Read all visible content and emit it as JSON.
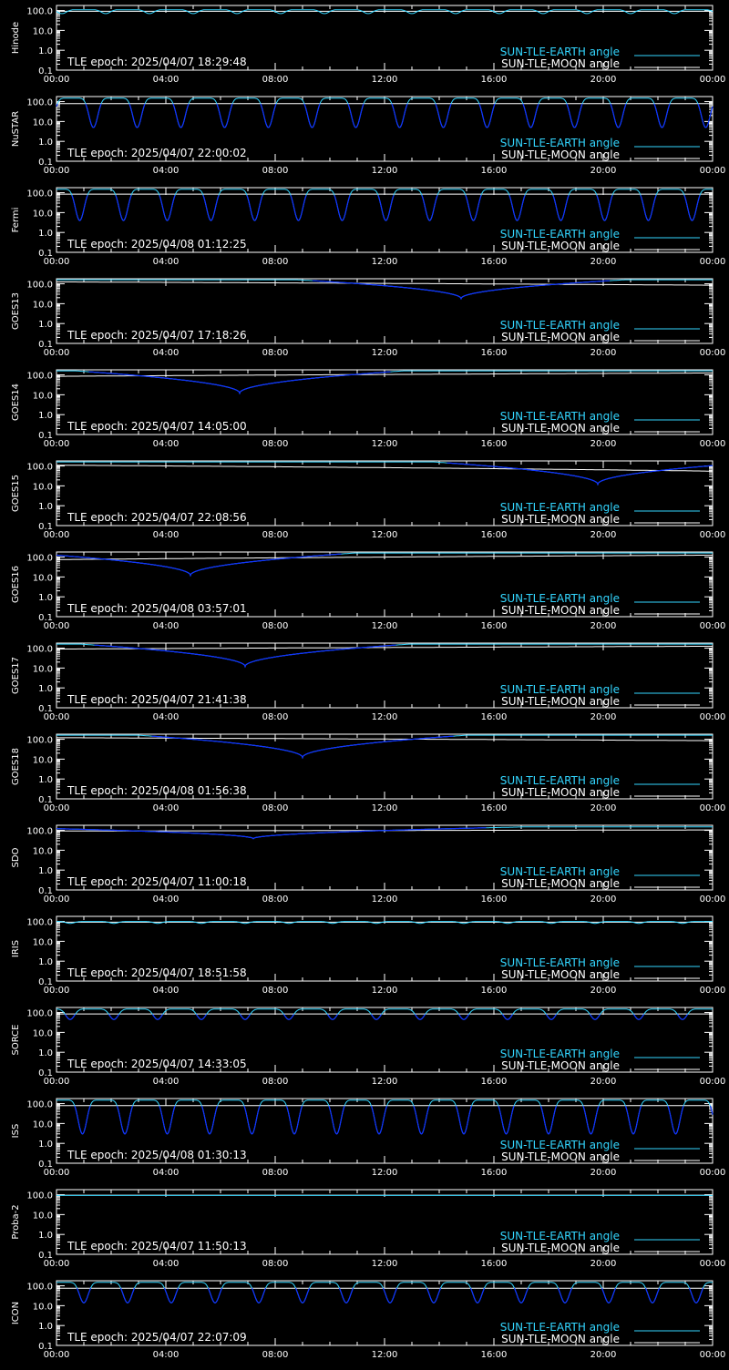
{
  "colors": {
    "background": "#000000",
    "axes": "#ffffff",
    "earth_angle": "#33d6ff",
    "earth_angle_shadow": "#1030ff",
    "moon_angle": "#ffffff"
  },
  "legend": {
    "earth_label": "SUN-TLE-EARTH angle",
    "moon_label": "SUN-TLE-MOON angle"
  },
  "x_ticks": [
    "00:00",
    "04:00",
    "08:00",
    "12:00",
    "16:00",
    "20:00",
    "00:00"
  ],
  "y_ticks": [
    "100.0",
    "10.0",
    "1.0",
    "0.1"
  ],
  "chart_data": [
    {
      "type": "line",
      "satellite": "Hinode",
      "epoch": "TLE epoch: 2025/04/07 18:29:48",
      "scale": "log",
      "ylim": [
        0.1,
        180
      ],
      "xlim": [
        0,
        24
      ],
      "earth": {
        "kind": "periodic",
        "period_h": 1.6,
        "phase_h": 0.2,
        "min": 70,
        "max": 110,
        "shadow": false
      },
      "moon": {
        "kind": "flat",
        "value": 92
      }
    },
    {
      "type": "line",
      "satellite": "NuSTAR",
      "epoch": "TLE epoch: 2025/04/07 22:00:02",
      "scale": "log",
      "ylim": [
        0.1,
        180
      ],
      "xlim": [
        0,
        24
      ],
      "earth": {
        "kind": "periodic",
        "period_h": 1.6,
        "phase_h": 1.35,
        "min": 5,
        "max": 150,
        "shadow": true
      },
      "moon": {
        "kind": "flat",
        "value": 80
      }
    },
    {
      "type": "line",
      "satellite": "Fermi",
      "epoch": "TLE epoch: 2025/04/08 01:12:25",
      "scale": "log",
      "ylim": [
        0.1,
        180
      ],
      "xlim": [
        0,
        24
      ],
      "earth": {
        "kind": "periodic",
        "period_h": 1.6,
        "phase_h": 0.85,
        "min": 4,
        "max": 150,
        "shadow": true
      },
      "moon": {
        "kind": "flat",
        "value": 85
      }
    },
    {
      "type": "line",
      "satellite": "GOES13",
      "epoch": "TLE epoch: 2025/04/07 17:18:26",
      "scale": "log",
      "ylim": [
        0.1,
        180
      ],
      "xlim": [
        0,
        24
      ],
      "earth": {
        "kind": "dip",
        "center_h": 14.8,
        "min": 18,
        "max": 160,
        "width_h": 12
      },
      "moon": {
        "kind": "linear",
        "from": 125,
        "to": 85
      }
    },
    {
      "type": "line",
      "satellite": "GOES14",
      "epoch": "TLE epoch: 2025/04/07 14:05:00",
      "scale": "log",
      "ylim": [
        0.1,
        180
      ],
      "xlim": [
        0,
        24
      ],
      "earth": {
        "kind": "dip",
        "center_h": 6.7,
        "min": 12,
        "max": 160,
        "width_h": 12
      },
      "moon": {
        "kind": "linear",
        "from": 85,
        "to": 125
      }
    },
    {
      "type": "line",
      "satellite": "GOES15",
      "epoch": "TLE epoch: 2025/04/07 22:08:56",
      "scale": "log",
      "ylim": [
        0.1,
        180
      ],
      "xlim": [
        0,
        24
      ],
      "earth": {
        "kind": "dip",
        "center_h": 19.8,
        "min": 12,
        "max": 160,
        "width_h": 12
      },
      "moon": {
        "kind": "linear",
        "from": 110,
        "to": 55
      }
    },
    {
      "type": "line",
      "satellite": "GOES16",
      "epoch": "TLE epoch: 2025/04/08 03:57:01",
      "scale": "log",
      "ylim": [
        0.1,
        180
      ],
      "xlim": [
        0,
        24
      ],
      "earth": {
        "kind": "dip",
        "center_h": 4.9,
        "min": 12,
        "max": 160,
        "width_h": 12
      },
      "moon": {
        "kind": "linear",
        "from": 75,
        "to": 125
      }
    },
    {
      "type": "line",
      "satellite": "GOES17",
      "epoch": "TLE epoch: 2025/04/07 21:41:38",
      "scale": "log",
      "ylim": [
        0.1,
        180
      ],
      "xlim": [
        0,
        24
      ],
      "earth": {
        "kind": "dip",
        "center_h": 6.9,
        "min": 12,
        "max": 160,
        "width_h": 12
      },
      "moon": {
        "kind": "linear",
        "from": 90,
        "to": 125
      }
    },
    {
      "type": "line",
      "satellite": "GOES18",
      "epoch": "TLE epoch: 2025/04/08 01:56:38",
      "scale": "log",
      "ylim": [
        0.1,
        180
      ],
      "xlim": [
        0,
        24
      ],
      "earth": {
        "kind": "dip",
        "center_h": 9.0,
        "min": 12,
        "max": 160,
        "width_h": 12
      },
      "moon": {
        "kind": "linear",
        "from": 120,
        "to": 85
      }
    },
    {
      "type": "line",
      "satellite": "SDO",
      "epoch": "TLE epoch: 2025/04/07 11:00:18",
      "scale": "log",
      "ylim": [
        0.1,
        180
      ],
      "xlim": [
        0,
        24
      ],
      "earth": {
        "kind": "dip",
        "center_h": 7.2,
        "min": 38,
        "max": 150,
        "width_h": 20
      },
      "moon": {
        "kind": "linear",
        "from": 92,
        "to": 105
      }
    },
    {
      "type": "line",
      "satellite": "IRIS",
      "epoch": "TLE epoch: 2025/04/07 18:51:58",
      "scale": "log",
      "ylim": [
        0.1,
        180
      ],
      "xlim": [
        0,
        24
      ],
      "earth": {
        "kind": "periodic",
        "period_h": 1.6,
        "phase_h": 0.5,
        "min": 80,
        "max": 100,
        "shadow": false
      },
      "moon": {
        "kind": "flat",
        "value": 92
      }
    },
    {
      "type": "line",
      "satellite": "SORCE",
      "epoch": "TLE epoch: 2025/04/07 14:33:05",
      "scale": "log",
      "ylim": [
        0.1,
        180
      ],
      "xlim": [
        0,
        24
      ],
      "earth": {
        "kind": "periodic",
        "period_h": 1.6,
        "phase_h": 0.5,
        "min": 45,
        "max": 150,
        "shadow": true
      },
      "moon": {
        "kind": "flat",
        "value": 85
      }
    },
    {
      "type": "line",
      "satellite": "ISS",
      "epoch": "TLE epoch: 2025/04/08 01:30:13",
      "scale": "log",
      "ylim": [
        0.1,
        180
      ],
      "xlim": [
        0,
        24
      ],
      "earth": {
        "kind": "periodic",
        "period_h": 1.55,
        "phase_h": 0.95,
        "min": 3,
        "max": 150,
        "shadow": true
      },
      "moon": {
        "kind": "flat",
        "value": 80
      }
    },
    {
      "type": "line",
      "satellite": "Proba-2",
      "epoch": "TLE epoch: 2025/04/07 11:50:13",
      "scale": "log",
      "ylim": [
        0.1,
        180
      ],
      "xlim": [
        0,
        24
      ],
      "earth": {
        "kind": "flat",
        "value": 92
      },
      "moon": {
        "kind": "flat",
        "value": 95
      }
    },
    {
      "type": "line",
      "satellite": "ICON",
      "epoch": "TLE epoch: 2025/04/07 22:07:09",
      "scale": "log",
      "ylim": [
        0.1,
        180
      ],
      "xlim": [
        0,
        24
      ],
      "earth": {
        "kind": "periodic",
        "period_h": 1.6,
        "phase_h": 1.0,
        "min": 14,
        "max": 150,
        "shadow": true
      },
      "moon": {
        "kind": "flat",
        "value": 75
      }
    }
  ]
}
